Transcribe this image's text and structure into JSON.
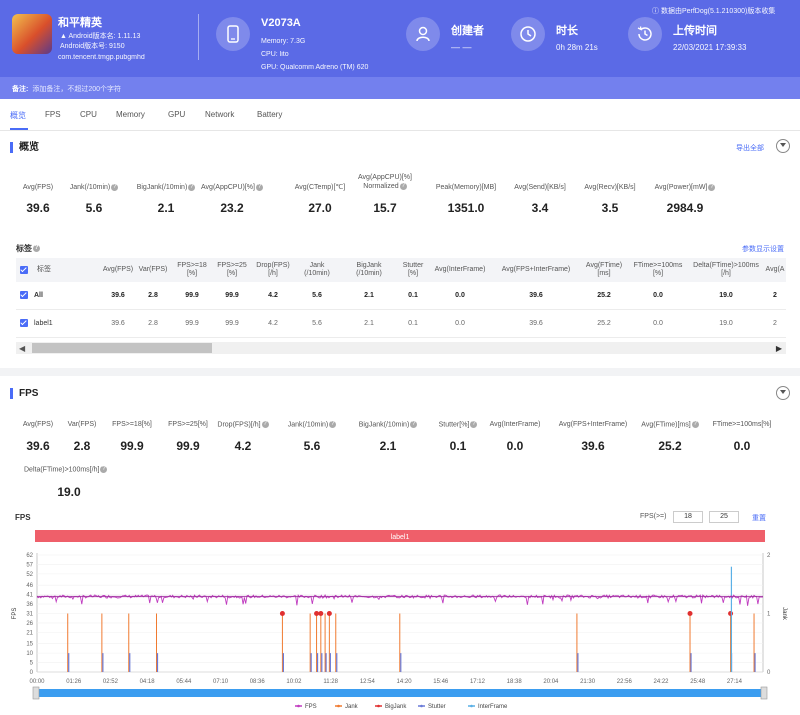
{
  "header": {
    "app_name": "和平精英",
    "android_version": "Android版本名: 1.11.13",
    "android_build": "Android版本号: 9150",
    "package": "com.tencent.tmgp.pubgmhd",
    "device": "V2073A",
    "memory": "Memory: 7.3G",
    "cpu": "CPU: lito",
    "gpu": "GPU: Qualcomm Adreno (TM) 620",
    "creator_label": "创建者",
    "creator_value": "— —",
    "duration_label": "时长",
    "duration_value": "0h 28m 21s",
    "upload_label": "上传时间",
    "upload_value": "22/03/2021 17:39:33",
    "source_note": "数据由PerfDog(5.1.210300)版本收集",
    "note_label": "备注:",
    "note_placeholder": "添加备注，不超过200个字符"
  },
  "tabs": [
    "概览",
    "FPS",
    "CPU",
    "Memory",
    "GPU",
    "Network",
    "Battery"
  ],
  "overview": {
    "title": "概览",
    "export_label": "导出全部",
    "metrics": [
      {
        "label": "Avg(FPS)",
        "value": "39.6",
        "help": false
      },
      {
        "label": "Jank(/10min)",
        "value": "5.6",
        "help": true
      },
      {
        "label": "BigJank(/10min)",
        "value": "2.1",
        "help": true
      },
      {
        "label": "Avg(AppCPU)[%]",
        "value": "23.2",
        "help": true
      },
      {
        "label": "Avg(CTemp)[℃]",
        "value": "27.0",
        "help": false
      },
      {
        "label": "Avg(AppCPU)[%]\nNormalized",
        "value": "15.7",
        "help": true
      },
      {
        "label": "Peak(Memory)[MB]",
        "value": "1351.0",
        "help": false
      },
      {
        "label": "Avg(Send)[KB/s]",
        "value": "3.4",
        "help": false
      },
      {
        "label": "Avg(Recv)[KB/s]",
        "value": "3.5",
        "help": false
      },
      {
        "label": "Avg(Power)[mW]",
        "value": "2984.9",
        "help": true
      }
    ]
  },
  "labels_table": {
    "title": "标签",
    "settings_label": "参数显示设置",
    "columns": [
      "标签",
      "Avg(FPS)",
      "Var(FPS)",
      "FPS>=18\n[%]",
      "FPS>=25\n[%]",
      "Drop(FPS)\n[/h]",
      "Jank\n(/10min)",
      "BigJank\n(/10min)",
      "Stutter\n[%]",
      "Avg(InterFrame)",
      "Avg(FPS+InterFrame)",
      "Avg(FTime)\n[ms]",
      "FTime>=100ms\n[%]",
      "Delta(FTime)>100ms\n[/h]",
      "Avg(A"
    ],
    "rows": [
      {
        "name": "All",
        "bold": true,
        "cells": [
          "39.6",
          "2.8",
          "99.9",
          "99.9",
          "4.2",
          "5.6",
          "2.1",
          "0.1",
          "0.0",
          "39.6",
          "25.2",
          "0.0",
          "19.0",
          "2"
        ]
      },
      {
        "name": "label1",
        "bold": false,
        "cells": [
          "39.6",
          "2.8",
          "99.9",
          "99.9",
          "4.2",
          "5.6",
          "2.1",
          "0.1",
          "0.0",
          "39.6",
          "25.2",
          "0.0",
          "19.0",
          "2"
        ]
      }
    ]
  },
  "fps_section": {
    "title": "FPS",
    "metrics": [
      {
        "label": "Avg(FPS)",
        "value": "39.6",
        "help": false
      },
      {
        "label": "Var(FPS)",
        "value": "2.8",
        "help": false
      },
      {
        "label": "FPS>=18[%]",
        "value": "99.9",
        "help": false
      },
      {
        "label": "FPS>=25[%]",
        "value": "99.9",
        "help": false
      },
      {
        "label": "Drop(FPS)[/h]",
        "value": "4.2",
        "help": true
      },
      {
        "label": "Jank(/10min)",
        "value": "5.6",
        "help": true
      },
      {
        "label": "BigJank(/10min)",
        "value": "2.1",
        "help": true
      },
      {
        "label": "Stutter[%]",
        "value": "0.1",
        "help": true
      },
      {
        "label": "Avg(InterFrame)",
        "value": "0.0",
        "help": false
      },
      {
        "label": "Avg(FPS+InterFrame)",
        "value": "39.6",
        "help": false
      },
      {
        "label": "Avg(FTime)[ms]",
        "value": "25.2",
        "help": true
      },
      {
        "label": "FTime>=100ms[%]",
        "value": "0.0",
        "help": false
      }
    ],
    "extra_metric": {
      "label": "Delta(FTime)>100ms[/h]",
      "value": "19.0",
      "help": true
    },
    "chart_title": "FPS",
    "threshold_label": "FPS(>=)",
    "threshold_1": "18",
    "threshold_2": "25",
    "reset_label": "重置",
    "band_label": "label1"
  },
  "chart_data": {
    "type": "line",
    "title": "FPS",
    "ylabel": "FPS",
    "y2label": "Jank",
    "ylim": [
      0,
      62
    ],
    "y2lim": [
      0,
      2
    ],
    "yticks": [
      0,
      5,
      10,
      15,
      21,
      26,
      31,
      36,
      41,
      46,
      52,
      57,
      62
    ],
    "y2ticks": [
      0,
      1,
      2
    ],
    "xticks": [
      "00:00",
      "01:26",
      "02:52",
      "04:18",
      "05:44",
      "07:10",
      "08:36",
      "10:02",
      "11:28",
      "12:54",
      "14:20",
      "15:46",
      "17:12",
      "18:38",
      "20:04",
      "21:30",
      "22:56",
      "24:22",
      "25:48",
      "27:14"
    ],
    "x_max_seconds": 1701,
    "fps_mean": 40,
    "series": [
      {
        "name": "FPS",
        "color": "#c03cc0"
      },
      {
        "name": "Jank",
        "color": "#f07a30"
      },
      {
        "name": "BigJank",
        "color": "#e03030"
      },
      {
        "name": "Stutter",
        "color": "#6a7bd8"
      },
      {
        "name": "InterFrame",
        "color": "#5bb0e6"
      }
    ],
    "jank_events_seconds": [
      72,
      152,
      215,
      280,
      575,
      640,
      655,
      665,
      675,
      685,
      700,
      850,
      1265,
      1530,
      1625,
      1680
    ],
    "bigjank_events_seconds": [
      575,
      655,
      665,
      685,
      1530,
      1625
    ],
    "interframe_spike": {
      "x_seconds": 1627,
      "value": 1.8
    }
  }
}
